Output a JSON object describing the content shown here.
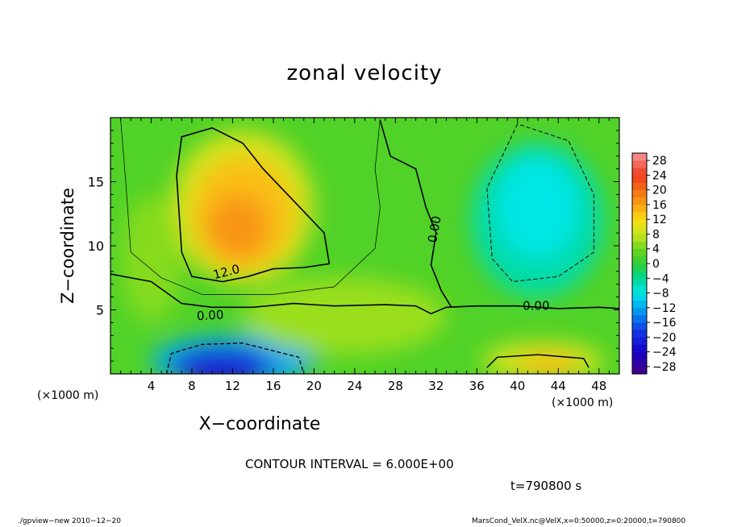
{
  "chart_data": {
    "type": "heatmap",
    "title": "zonal velocity",
    "xlabel": "X−coordinate",
    "ylabel": "Z−coordinate",
    "x_unit_label_left": "(×1000 m)",
    "x_unit_label_right": "(×1000 m)",
    "xlim": [
      0,
      50
    ],
    "ylim": [
      0,
      20
    ],
    "x_ticks": [
      4,
      8,
      12,
      16,
      20,
      24,
      28,
      32,
      36,
      40,
      44,
      48
    ],
    "y_ticks": [
      5,
      10,
      15
    ],
    "x_tick_labels": [
      "4",
      "8",
      "12",
      "16",
      "20",
      "24",
      "28",
      "32",
      "36",
      "40",
      "44",
      "48"
    ],
    "y_tick_labels": [
      "5",
      "10",
      "15"
    ],
    "colorbar": {
      "levels": [
        -30,
        -28,
        -26,
        -24,
        -22,
        -20,
        -18,
        -16,
        -14,
        -12,
        -10,
        -8,
        -6,
        -4,
        -2,
        0,
        2,
        4,
        6,
        8,
        10,
        12,
        14,
        16,
        18,
        20,
        22,
        24,
        26,
        28,
        30
      ],
      "tick_labels": [
        "28",
        "24",
        "20",
        "16",
        "12",
        "8",
        "4",
        "0",
        "−4",
        "−8",
        "−12",
        "−16",
        "−20",
        "−24",
        "−28"
      ],
      "tick_values": [
        28,
        24,
        20,
        16,
        12,
        8,
        4,
        0,
        -4,
        -8,
        -12,
        -16,
        -20,
        -24,
        -28
      ]
    },
    "contour_labels": [
      "12.0",
      "0.00",
      "0.00",
      "0.00"
    ],
    "features": [
      {
        "kind": "max",
        "x": 12.5,
        "z": 13.0,
        "value": 18
      },
      {
        "kind": "max",
        "x": 42.5,
        "z": 0.8,
        "value": 14
      },
      {
        "kind": "min",
        "x": 11.0,
        "z": 0.6,
        "value": -24
      },
      {
        "kind": "min",
        "x": 42.0,
        "z": 13.0,
        "value": -9
      }
    ]
  },
  "annotations": {
    "contour_interval": "CONTOUR INTERVAL = 6.000E+00",
    "time": "t=790800 s",
    "footer_left": "./gpview−new   2010−12−20",
    "footer_right": "MarsCond_VelX.nc@VelX,x=0:50000,z=0:20000,t=790800"
  },
  "colors": {
    "background": "#ffffff",
    "axis": "#000000"
  }
}
